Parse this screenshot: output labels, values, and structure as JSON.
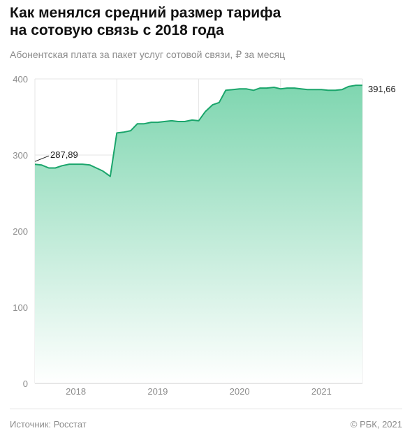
{
  "title_line1": "Как менялся средний размер тарифа",
  "title_line2": "на сотовую связь с 2018 года",
  "subtitle": "Абонентская плата за пакет услуг сотовой связи, ₽ за месяц",
  "footer": {
    "source": "Источник: Росстат",
    "copyright": "© РБК, 2021"
  },
  "colors": {
    "line": "#1aa56b",
    "fill_top": "#7fd6b0",
    "fill_bottom": "#ffffff",
    "grid": "#e6e6e6"
  },
  "chart_data": {
    "type": "area",
    "title": "Как менялся средний размер тарифа на сотовую связь с 2018 года",
    "ylabel": "Абонентская плата за пакет услуг сотовой связи, ₽ за месяц",
    "ylim": [
      0,
      400
    ],
    "yticks": [
      0,
      100,
      200,
      300,
      400
    ],
    "xlim": [
      2018.0,
      2022.0
    ],
    "year_labels": [
      "2018",
      "2019",
      "2020",
      "2021"
    ],
    "grid": true,
    "annotations": [
      {
        "text": "287,89",
        "at": "start"
      },
      {
        "text": "391,66",
        "at": "end"
      }
    ],
    "x": [
      2018.0,
      2018.08,
      2018.17,
      2018.25,
      2018.33,
      2018.42,
      2018.5,
      2018.58,
      2018.67,
      2018.75,
      2018.83,
      2018.92,
      2019.0,
      2019.08,
      2019.17,
      2019.25,
      2019.33,
      2019.42,
      2019.5,
      2019.58,
      2019.67,
      2019.75,
      2019.83,
      2019.92,
      2020.0,
      2020.08,
      2020.17,
      2020.25,
      2020.33,
      2020.42,
      2020.5,
      2020.58,
      2020.67,
      2020.75,
      2020.83,
      2020.92,
      2021.0,
      2021.08,
      2021.17,
      2021.25,
      2021.33,
      2021.42,
      2021.5,
      2021.58,
      2021.67,
      2021.75,
      2021.83,
      2021.92,
      2022.0
    ],
    "values": [
      287.89,
      287,
      283,
      283,
      286,
      288,
      288,
      288,
      287,
      283,
      279,
      272,
      329,
      330,
      332,
      341,
      341,
      343,
      343,
      344,
      345,
      344,
      344,
      346,
      345,
      357,
      366,
      369,
      385,
      386,
      387,
      387,
      385,
      388,
      388,
      389,
      387,
      388,
      388,
      387,
      386,
      386,
      386,
      385,
      385,
      386,
      390,
      391.66,
      391.66
    ]
  }
}
